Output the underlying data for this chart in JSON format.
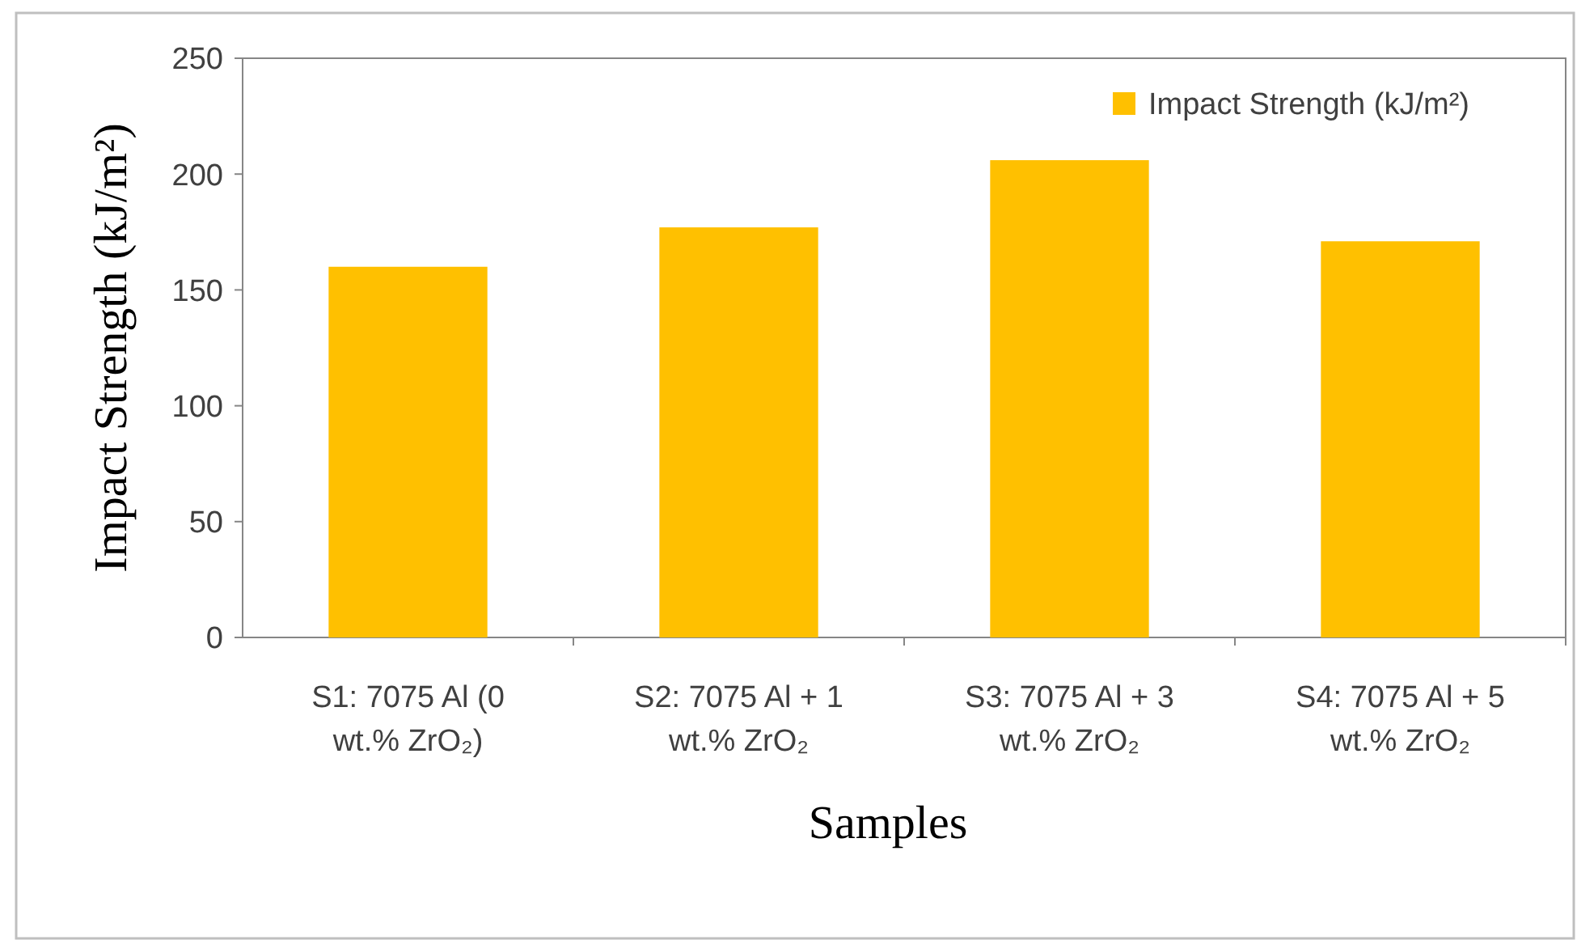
{
  "chart_data": {
    "type": "bar",
    "categories": [
      "S1: 7075 Al (0 wt.% ZrO₂)",
      "S2: 7075 Al + 1 wt.% ZrO₂",
      "S3: 7075 Al + 3 wt.% ZrO₂",
      "S4: 7075 Al + 5 wt.% ZrO₂"
    ],
    "series": [
      {
        "name": "Impact Strength (kJ/m²)",
        "color": "#ffc000",
        "values": [
          160,
          177,
          206,
          171
        ]
      }
    ],
    "xlabel": "Samples",
    "ylabel": "Impact Strength (kJ/m²)",
    "ylim": [
      0,
      250
    ],
    "yticks": [
      0,
      50,
      100,
      150,
      200,
      250
    ],
    "grid": false,
    "legend": "top right"
  }
}
